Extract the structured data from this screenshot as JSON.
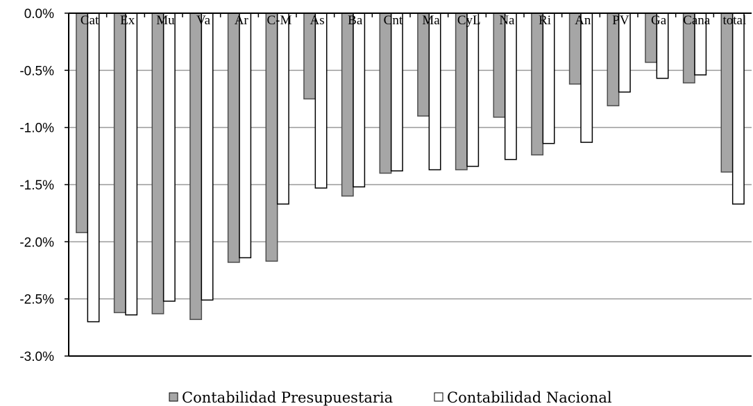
{
  "chart_data": {
    "type": "bar",
    "categories": [
      "Cat",
      "Ex",
      "Mu",
      "Va",
      "Ar",
      "C-M",
      "As",
      "Ba",
      "Cnt",
      "Ma",
      "CyL",
      "Na",
      "Ri",
      "An",
      "PV",
      "Ga",
      "Cana",
      "total"
    ],
    "series": [
      {
        "name": "Contabilidad Presupuestaria",
        "color": "#a6a6a6",
        "values": [
          -1.92,
          -2.62,
          -2.63,
          -2.68,
          -2.18,
          -2.17,
          -0.75,
          -1.6,
          -1.4,
          -0.9,
          -1.37,
          -0.91,
          -1.24,
          -0.62,
          -0.81,
          -0.43,
          -0.61,
          -1.39
        ]
      },
      {
        "name": "Contabilidad Nacional",
        "color": "#ffffff",
        "values": [
          -2.7,
          -2.64,
          -2.52,
          -2.51,
          -2.14,
          -1.67,
          -1.53,
          -1.52,
          -1.38,
          -1.37,
          -1.34,
          -1.28,
          -1.14,
          -1.13,
          -0.69,
          -0.57,
          -0.54,
          -1.67
        ]
      }
    ],
    "ylim": [
      -3.0,
      0.0
    ],
    "yticks": [
      0.0,
      -0.5,
      -1.0,
      -1.5,
      -2.0,
      -2.5,
      -3.0
    ],
    "ytick_labels": [
      "0.0%",
      "-0.5%",
      "-1.0%",
      "-1.5%",
      "-2.0%",
      "-2.5%",
      "-3.0%"
    ],
    "grid": true,
    "legend_position": "bottom",
    "title": "",
    "xlabel": "",
    "ylabel": ""
  }
}
